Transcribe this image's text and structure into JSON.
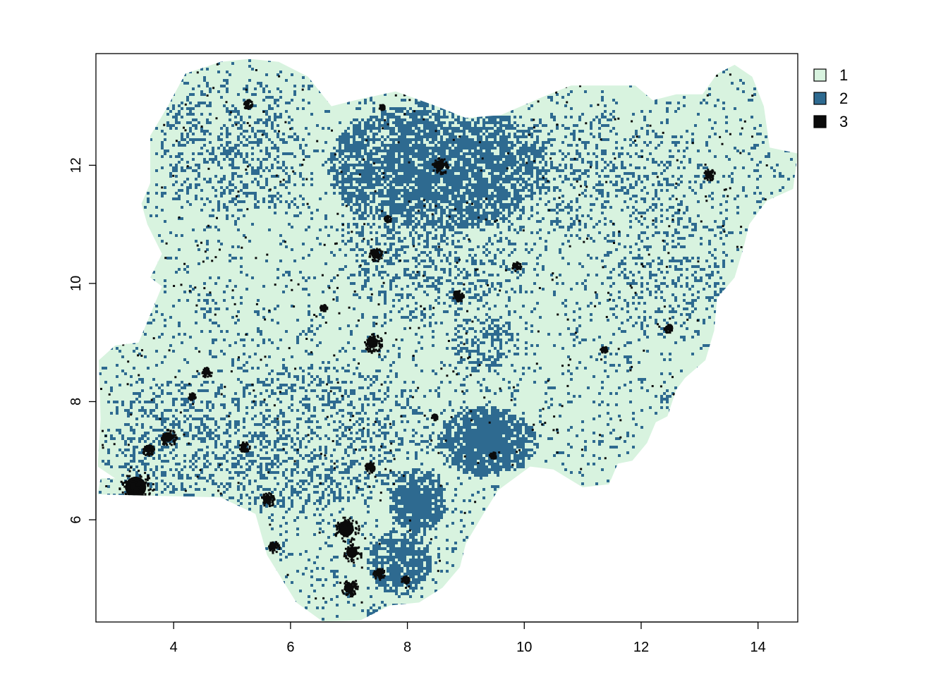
{
  "chart_data": {
    "type": "heatmap",
    "title": "",
    "xlabel": "",
    "ylabel": "",
    "xlim": [
      2.67,
      14.68
    ],
    "ylim": [
      4.27,
      13.89
    ],
    "x_ticks": [
      "4",
      "6",
      "8",
      "10",
      "12",
      "14"
    ],
    "y_ticks": [
      "6",
      "8",
      "10",
      "12"
    ],
    "grid": false,
    "legend_position": "top-right",
    "classes": [
      {
        "label": "1",
        "color": "#d8f3df"
      },
      {
        "label": "2",
        "color": "#2e6a90"
      },
      {
        "label": "3",
        "color": "#0b0b0b"
      }
    ],
    "region_outline": [
      [
        3.0,
        6.7
      ],
      [
        2.75,
        6.7
      ],
      [
        2.7,
        6.43
      ],
      [
        3.9,
        6.4
      ],
      [
        4.8,
        6.38
      ],
      [
        5.4,
        6.1
      ],
      [
        5.6,
        5.4
      ],
      [
        6.1,
        4.6
      ],
      [
        6.55,
        4.28
      ],
      [
        7.2,
        4.3
      ],
      [
        7.7,
        4.55
      ],
      [
        8.2,
        4.6
      ],
      [
        8.6,
        4.85
      ],
      [
        8.9,
        5.2
      ],
      [
        9.0,
        5.6
      ],
      [
        9.3,
        6.1
      ],
      [
        9.55,
        6.5
      ],
      [
        10.1,
        6.9
      ],
      [
        10.5,
        6.85
      ],
      [
        11.0,
        6.55
      ],
      [
        11.45,
        6.6
      ],
      [
        11.6,
        6.95
      ],
      [
        11.85,
        7.0
      ],
      [
        12.1,
        7.3
      ],
      [
        12.25,
        7.65
      ],
      [
        12.45,
        7.75
      ],
      [
        12.6,
        8.2
      ],
      [
        12.75,
        8.4
      ],
      [
        13.1,
        8.7
      ],
      [
        13.25,
        9.2
      ],
      [
        13.3,
        9.75
      ],
      [
        13.6,
        10.1
      ],
      [
        13.75,
        10.6
      ],
      [
        13.85,
        11.0
      ],
      [
        14.15,
        11.4
      ],
      [
        14.6,
        11.6
      ],
      [
        14.68,
        12.2
      ],
      [
        14.2,
        12.3
      ],
      [
        14.1,
        13.0
      ],
      [
        13.9,
        13.5
      ],
      [
        13.6,
        13.7
      ],
      [
        13.3,
        13.55
      ],
      [
        13.05,
        13.2
      ],
      [
        12.6,
        13.2
      ],
      [
        12.2,
        13.1
      ],
      [
        11.9,
        13.35
      ],
      [
        11.3,
        13.35
      ],
      [
        10.8,
        13.35
      ],
      [
        10.3,
        13.15
      ],
      [
        9.6,
        12.85
      ],
      [
        9.0,
        12.8
      ],
      [
        8.5,
        13.0
      ],
      [
        7.8,
        13.25
      ],
      [
        7.1,
        13.1
      ],
      [
        6.7,
        13.0
      ],
      [
        6.3,
        13.5
      ],
      [
        5.8,
        13.75
      ],
      [
        5.3,
        13.8
      ],
      [
        4.8,
        13.75
      ],
      [
        4.2,
        13.55
      ],
      [
        3.9,
        13.0
      ],
      [
        3.6,
        12.5
      ],
      [
        3.6,
        11.7
      ],
      [
        3.45,
        11.35
      ],
      [
        3.55,
        11.0
      ],
      [
        3.8,
        10.5
      ],
      [
        3.6,
        10.1
      ],
      [
        3.8,
        9.95
      ],
      [
        3.4,
        9.0
      ],
      [
        3.0,
        8.95
      ],
      [
        2.72,
        8.7
      ],
      [
        2.75,
        7.7
      ],
      [
        2.7,
        6.9
      ]
    ],
    "class2_zones": [
      {
        "x": 8.5,
        "y": 12.0,
        "rx": 1.9,
        "ry": 1.1,
        "density": 0.85
      },
      {
        "x": 9.35,
        "y": 7.35,
        "rx": 0.85,
        "ry": 0.6,
        "density": 1.0
      },
      {
        "x": 8.15,
        "y": 6.35,
        "rx": 0.5,
        "ry": 0.55,
        "density": 1.0
      },
      {
        "x": 7.85,
        "y": 5.3,
        "rx": 0.55,
        "ry": 0.55,
        "density": 0.85
      },
      {
        "x": 8.35,
        "y": 10.6,
        "rx": 1.6,
        "ry": 1.3,
        "density": 0.3
      },
      {
        "x": 11.0,
        "y": 11.8,
        "rx": 2.2,
        "ry": 1.1,
        "density": 0.25
      },
      {
        "x": 12.5,
        "y": 10.2,
        "rx": 1.0,
        "ry": 1.2,
        "density": 0.25
      },
      {
        "x": 5.0,
        "y": 12.3,
        "rx": 1.3,
        "ry": 1.2,
        "density": 0.3
      },
      {
        "x": 6.5,
        "y": 7.5,
        "rx": 1.8,
        "ry": 1.2,
        "density": 0.3
      },
      {
        "x": 9.3,
        "y": 9.0,
        "rx": 0.6,
        "ry": 0.5,
        "density": 0.55
      },
      {
        "x": 6.0,
        "y": 6.9,
        "rx": 1.5,
        "ry": 0.8,
        "density": 0.4
      },
      {
        "x": 4.2,
        "y": 7.4,
        "rx": 1.4,
        "ry": 1.0,
        "density": 0.35
      }
    ],
    "class3_clusters": [
      {
        "x": 3.35,
        "y": 6.55,
        "r": 0.3
      },
      {
        "x": 3.9,
        "y": 7.4,
        "r": 0.14
      },
      {
        "x": 3.55,
        "y": 7.2,
        "r": 0.1
      },
      {
        "x": 4.55,
        "y": 8.5,
        "r": 0.09
      },
      {
        "x": 5.2,
        "y": 7.25,
        "r": 0.09
      },
      {
        "x": 5.6,
        "y": 6.35,
        "r": 0.12
      },
      {
        "x": 5.7,
        "y": 5.55,
        "r": 0.1
      },
      {
        "x": 6.95,
        "y": 5.85,
        "r": 0.22
      },
      {
        "x": 7.05,
        "y": 5.45,
        "r": 0.16
      },
      {
        "x": 7.0,
        "y": 4.85,
        "r": 0.14
      },
      {
        "x": 7.5,
        "y": 5.1,
        "r": 0.1
      },
      {
        "x": 7.35,
        "y": 6.9,
        "r": 0.1
      },
      {
        "x": 7.4,
        "y": 9.0,
        "r": 0.16
      },
      {
        "x": 7.45,
        "y": 10.5,
        "r": 0.12
      },
      {
        "x": 8.55,
        "y": 12.0,
        "r": 0.14
      },
      {
        "x": 8.85,
        "y": 9.8,
        "r": 0.1
      },
      {
        "x": 9.85,
        "y": 10.3,
        "r": 0.08
      },
      {
        "x": 13.15,
        "y": 11.85,
        "r": 0.1
      },
      {
        "x": 5.25,
        "y": 13.05,
        "r": 0.08
      },
      {
        "x": 12.45,
        "y": 9.25,
        "r": 0.07
      },
      {
        "x": 7.95,
        "y": 5.0,
        "r": 0.07
      },
      {
        "x": 9.45,
        "y": 7.1,
        "r": 0.06
      },
      {
        "x": 4.3,
        "y": 8.1,
        "r": 0.06
      },
      {
        "x": 6.55,
        "y": 9.6,
        "r": 0.06
      },
      {
        "x": 11.35,
        "y": 8.9,
        "r": 0.06
      },
      {
        "x": 8.45,
        "y": 7.75,
        "r": 0.05
      },
      {
        "x": 7.65,
        "y": 11.1,
        "r": 0.06
      },
      {
        "x": 7.55,
        "y": 13.0,
        "r": 0.05
      }
    ]
  }
}
